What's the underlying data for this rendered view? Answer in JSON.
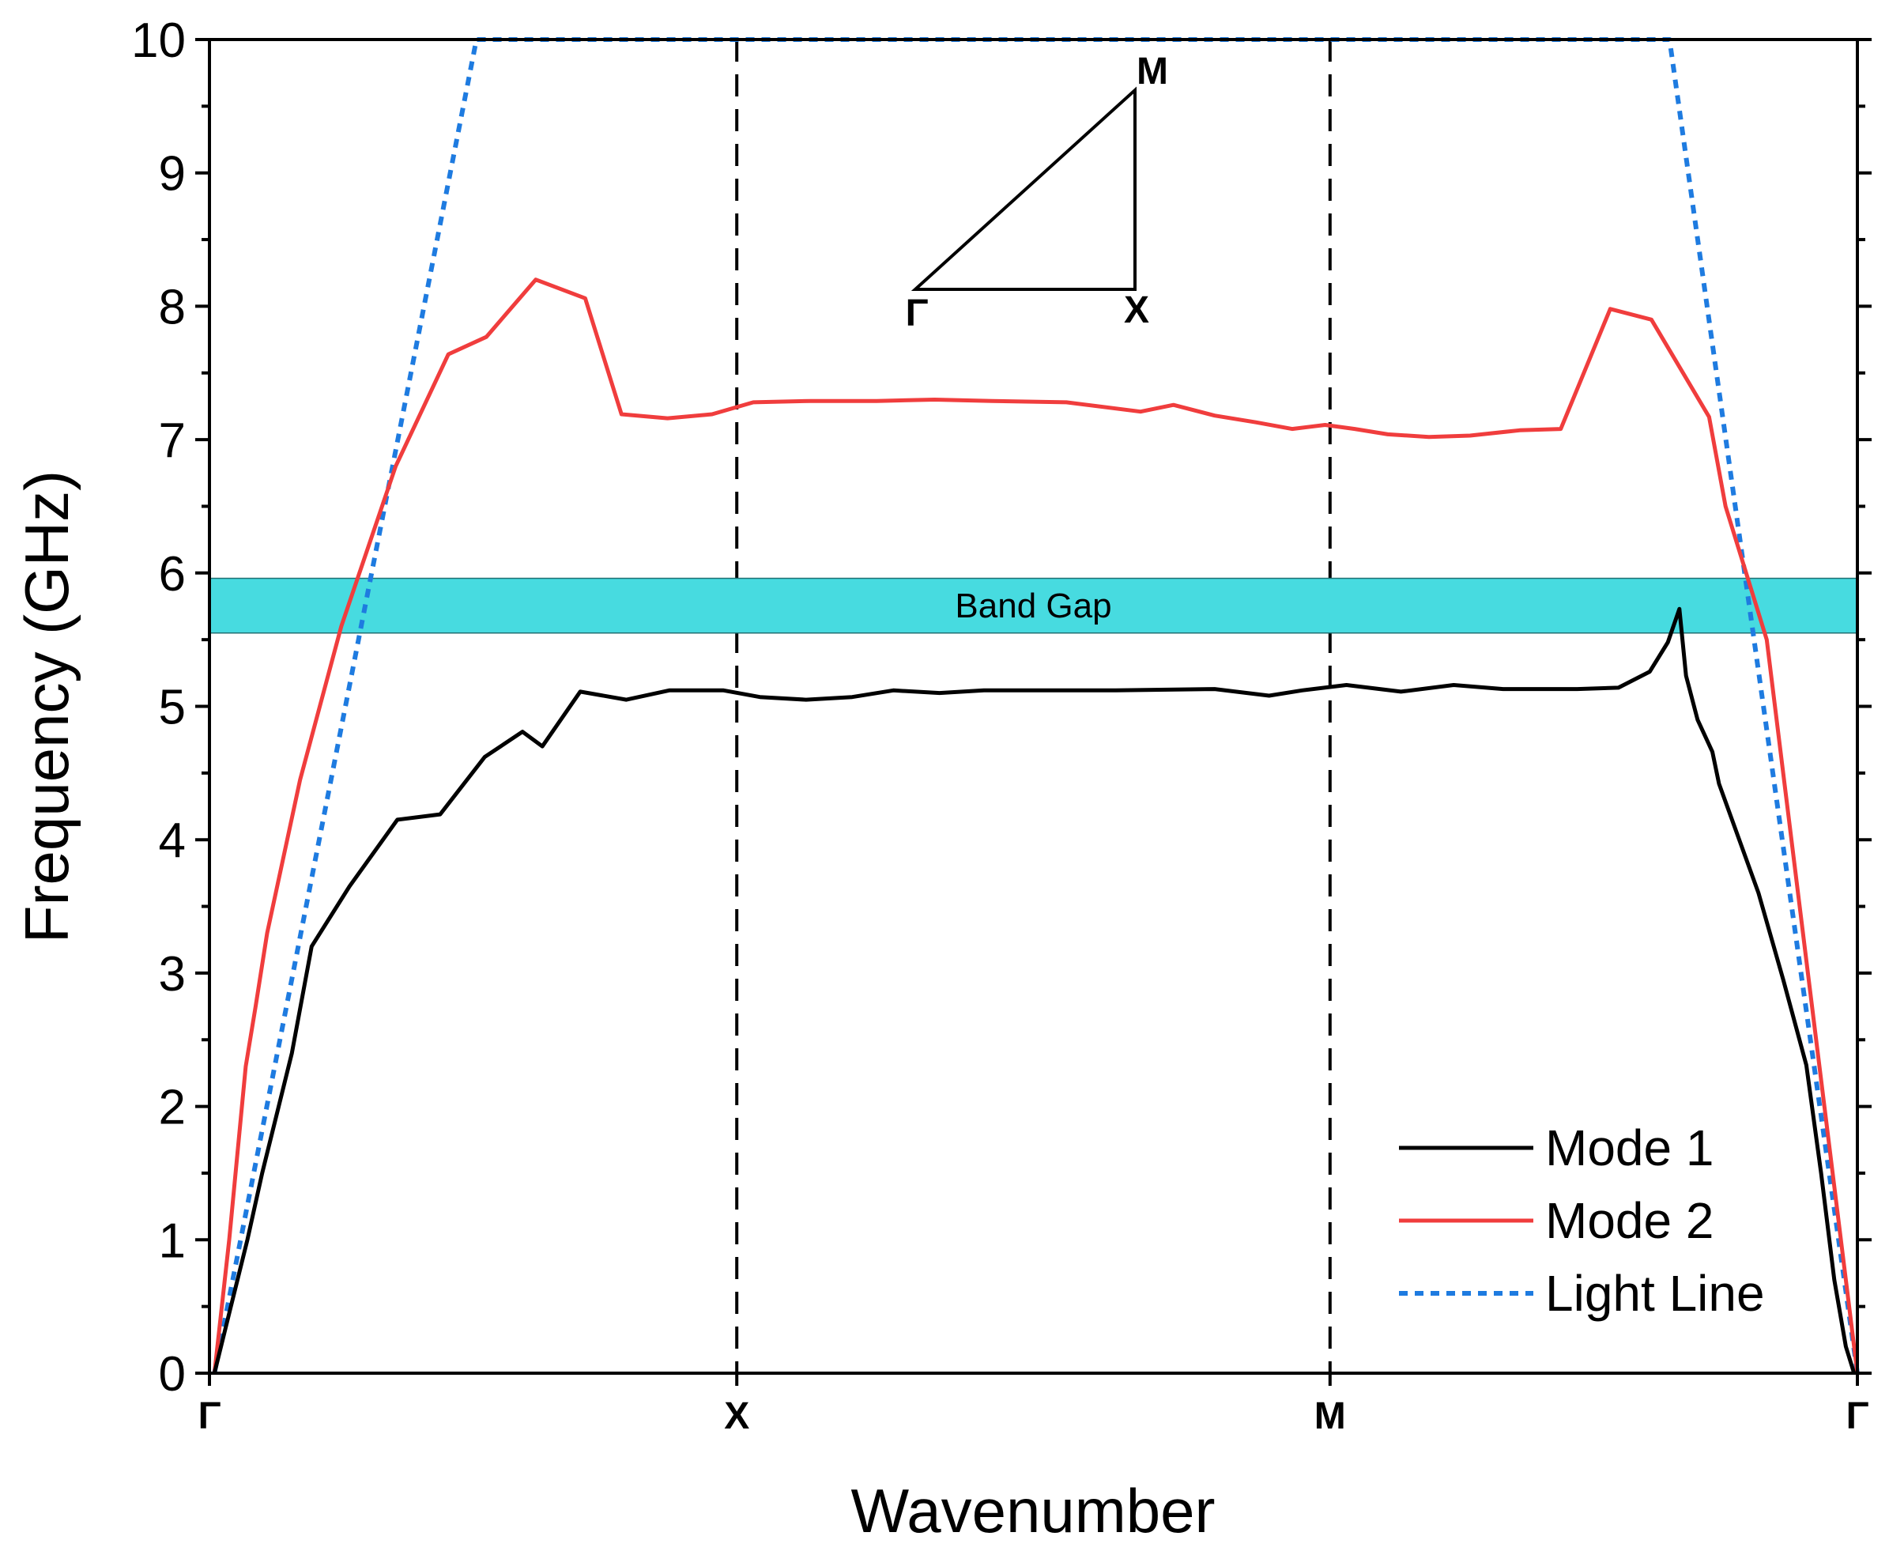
{
  "chart_data": {
    "type": "line",
    "title": "",
    "xlabel": "Wavenumber",
    "ylabel": "Frequency (GHz)",
    "xlim": [
      0,
      100
    ],
    "ylim": [
      0,
      10
    ],
    "y_ticks": [
      0,
      1,
      2,
      3,
      4,
      5,
      6,
      7,
      8,
      9,
      10
    ],
    "x_ticks": [
      {
        "label": "Γ",
        "x": 0
      },
      {
        "label": "X",
        "x": 32
      },
      {
        "label": "M",
        "x": 68
      },
      {
        "label": "Γ",
        "x": 100
      }
    ],
    "dashed_lines_at": [
      32,
      68
    ],
    "band_gap": {
      "label": "Band Gap",
      "from": 5.55,
      "to": 5.96,
      "color": "#47dbe0"
    },
    "inset": {
      "labels": {
        "gamma": "Γ",
        "x": "X",
        "m": "M"
      }
    },
    "legend": {
      "position": "bottom-right"
    },
    "series": [
      {
        "name": "Mode 1",
        "color": "#000000",
        "style": "solid",
        "points": [
          [
            0.3,
            0
          ],
          [
            1.3,
            0.5
          ],
          [
            2.3,
            1.0
          ],
          [
            3.2,
            1.5
          ],
          [
            4.2,
            2.0
          ],
          [
            5.0,
            2.4
          ],
          [
            6.2,
            3.2
          ],
          [
            8.5,
            3.65
          ],
          [
            11.4,
            4.15
          ],
          [
            14.0,
            4.19
          ],
          [
            16.7,
            4.62
          ],
          [
            19.0,
            4.81
          ],
          [
            20.2,
            4.7
          ],
          [
            22.5,
            5.11
          ],
          [
            25.3,
            5.05
          ],
          [
            27.9,
            5.12
          ],
          [
            31.2,
            5.12
          ],
          [
            33.4,
            5.07
          ],
          [
            36.2,
            5.05
          ],
          [
            39.0,
            5.07
          ],
          [
            41.5,
            5.12
          ],
          [
            44.3,
            5.1
          ],
          [
            47.0,
            5.12
          ],
          [
            51.0,
            5.12
          ],
          [
            55.0,
            5.12
          ],
          [
            61.0,
            5.13
          ],
          [
            64.3,
            5.08
          ],
          [
            66.3,
            5.12
          ],
          [
            69.0,
            5.16
          ],
          [
            72.3,
            5.11
          ],
          [
            75.5,
            5.16
          ],
          [
            78.5,
            5.13
          ],
          [
            83.0,
            5.13
          ],
          [
            85.5,
            5.14
          ],
          [
            87.4,
            5.26
          ],
          [
            88.5,
            5.48
          ],
          [
            89.2,
            5.73
          ],
          [
            89.6,
            5.23
          ],
          [
            90.3,
            4.9
          ],
          [
            91.2,
            4.66
          ],
          [
            91.6,
            4.42
          ],
          [
            94.0,
            3.6
          ],
          [
            95.5,
            2.95
          ],
          [
            96.9,
            2.31
          ],
          [
            97.8,
            1.5
          ],
          [
            98.6,
            0.7
          ],
          [
            99.3,
            0.2
          ],
          [
            99.8,
            0
          ]
        ]
      },
      {
        "name": "Mode 2",
        "color": "#f03d3d",
        "style": "solid",
        "points": [
          [
            0.3,
            0
          ],
          [
            1.2,
            1.0
          ],
          [
            2.2,
            2.3
          ],
          [
            2.8,
            2.75
          ],
          [
            3.5,
            3.3
          ],
          [
            5.5,
            4.45
          ],
          [
            8.0,
            5.6
          ],
          [
            11.3,
            6.8
          ],
          [
            14.5,
            7.64
          ],
          [
            16.8,
            7.77
          ],
          [
            19.8,
            8.2
          ],
          [
            22.8,
            8.06
          ],
          [
            25.0,
            7.19
          ],
          [
            27.8,
            7.16
          ],
          [
            30.5,
            7.19
          ],
          [
            33.0,
            7.28
          ],
          [
            36.5,
            7.29
          ],
          [
            40.5,
            7.29
          ],
          [
            44.0,
            7.3
          ],
          [
            47.5,
            7.29
          ],
          [
            52.0,
            7.28
          ],
          [
            56.5,
            7.21
          ],
          [
            58.5,
            7.26
          ],
          [
            61.0,
            7.18
          ],
          [
            63.5,
            7.13
          ],
          [
            65.7,
            7.08
          ],
          [
            67.7,
            7.11
          ],
          [
            69.5,
            7.08
          ],
          [
            71.5,
            7.04
          ],
          [
            74.0,
            7.02
          ],
          [
            76.5,
            7.03
          ],
          [
            79.5,
            7.07
          ],
          [
            82.0,
            7.08
          ],
          [
            85.0,
            7.98
          ],
          [
            87.5,
            7.9
          ],
          [
            91.0,
            7.17
          ],
          [
            92.0,
            6.5
          ],
          [
            93.5,
            5.9
          ],
          [
            94.5,
            5.5
          ],
          [
            97.0,
            3.0
          ],
          [
            98.5,
            1.5
          ],
          [
            100.0,
            0
          ]
        ]
      },
      {
        "name": "Light Line",
        "color": "#1e7be0",
        "style": "dotted",
        "points": [
          [
            0.3,
            0
          ],
          [
            16.2,
            10.0
          ],
          [
            88.6,
            10.0
          ],
          [
            100.0,
            0
          ]
        ]
      }
    ]
  }
}
